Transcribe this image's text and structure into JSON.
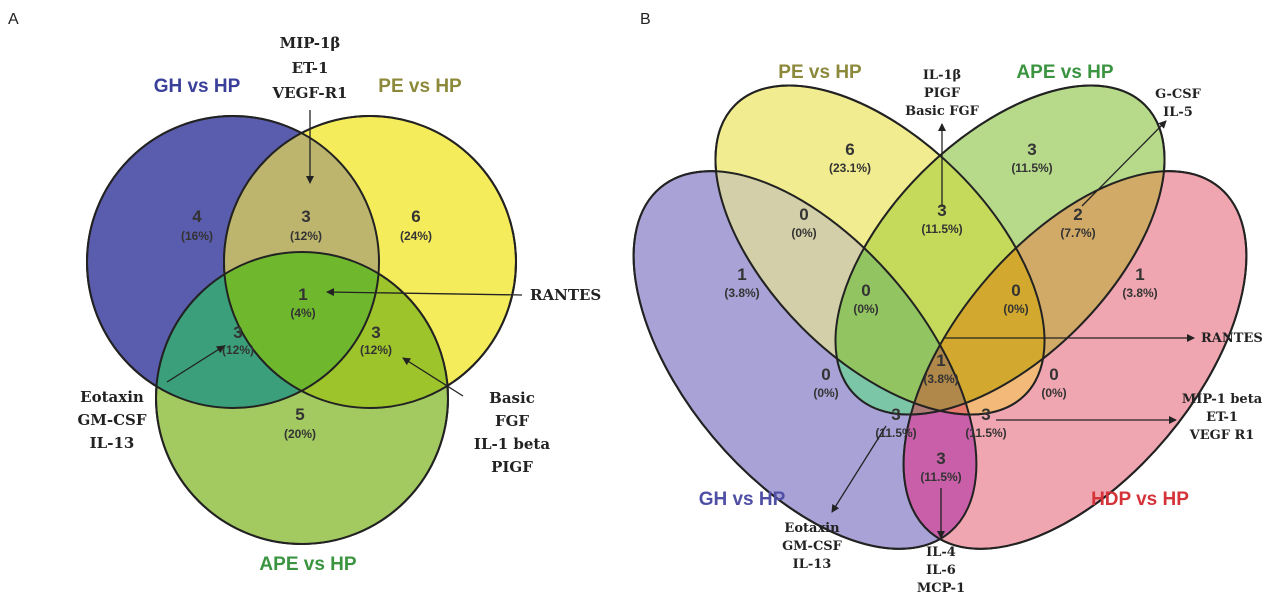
{
  "panels": [
    {
      "id": "A",
      "label": "A",
      "sets": [
        {
          "name": "GH vs HP",
          "color": "#5555a8",
          "fill": "#5a5cad"
        },
        {
          "name": "PE vs HP",
          "color": "#8c8a3a",
          "fill": "#f5ec5c"
        },
        {
          "name": "APE vs HP",
          "color": "#3b9440",
          "fill": "#a3c961"
        }
      ],
      "regions": [
        {
          "key": "gh_only",
          "count": "4",
          "pct": "(16%)"
        },
        {
          "key": "pe_only",
          "count": "6",
          "pct": "(24%)"
        },
        {
          "key": "ape_only",
          "count": "5",
          "pct": "(20%)"
        },
        {
          "key": "gh_pe",
          "count": "3",
          "pct": "(12%)"
        },
        {
          "key": "gh_ape",
          "count": "3",
          "pct": "(12%)"
        },
        {
          "key": "pe_ape",
          "count": "3",
          "pct": "(12%)"
        },
        {
          "key": "all",
          "count": "1",
          "pct": "(4%)"
        }
      ],
      "annotations": [
        {
          "key": "gh_pe",
          "lines": [
            "MIP-1β",
            "ET-1",
            "VEGF-R1"
          ]
        },
        {
          "key": "all",
          "lines": [
            "RANTES"
          ]
        },
        {
          "key": "gh_ape",
          "lines": [
            "Eotaxin",
            "GM-CSF",
            "IL-13"
          ]
        },
        {
          "key": "pe_ape",
          "lines": [
            "Basic",
            "FGF",
            "IL-1 beta",
            "PIGF"
          ]
        }
      ]
    },
    {
      "id": "B",
      "label": "B",
      "sets": [
        {
          "name": "PE vs HP",
          "color": "#8c8a3a",
          "fill": "#f1ec8f"
        },
        {
          "name": "APE vs HP",
          "color": "#3b9440",
          "fill": "#b6d98a"
        },
        {
          "name": "GH vs HP",
          "color": "#4f4fa6",
          "fill": "#a8a2d6"
        },
        {
          "name": "HDP vs HP",
          "color": "#d4333a",
          "fill": "#f0a6b0"
        }
      ],
      "regions": [
        {
          "key": "pe_only",
          "count": "6",
          "pct": "(23.1%)"
        },
        {
          "key": "ape_only",
          "count": "3",
          "pct": "(11.5%)"
        },
        {
          "key": "gh_pe",
          "count": "0",
          "pct": "(0%)"
        },
        {
          "key": "pe_ape",
          "count": "3",
          "pct": "(11.5%)"
        },
        {
          "key": "ape_hdp",
          "count": "2",
          "pct": "(7.7%)"
        },
        {
          "key": "gh_only",
          "count": "1",
          "pct": "(3.8%)"
        },
        {
          "key": "gh_pe_ape",
          "count": "0",
          "pct": "(0%)"
        },
        {
          "key": "pe_ape_hdp",
          "count": "0",
          "pct": "(0%)"
        },
        {
          "key": "hdp_only",
          "count": "1",
          "pct": "(3.8%)"
        },
        {
          "key": "all",
          "count": "1",
          "pct": "(3.8%)"
        },
        {
          "key": "gh_ape",
          "count": "0",
          "pct": "(0%)"
        },
        {
          "key": "pe_hdp",
          "count": "0",
          "pct": "(0%)"
        },
        {
          "key": "gh_ape_hdp",
          "count": "3",
          "pct": "(11.5%)"
        },
        {
          "key": "gh_pe_hdp",
          "count": "3",
          "pct": "(11.5%)"
        },
        {
          "key": "gh_hdp",
          "count": "3",
          "pct": "(11.5%)"
        }
      ],
      "annotations": [
        {
          "key": "pe_ape",
          "lines": [
            "IL-1β",
            "PIGF",
            "Basic FGF"
          ]
        },
        {
          "key": "ape_hdp",
          "lines": [
            "G-CSF",
            "IL-5"
          ]
        },
        {
          "key": "all",
          "lines": [
            "RANTES"
          ]
        },
        {
          "key": "gh_pe_hdp",
          "lines": [
            "MIP-1 beta",
            "ET-1",
            "VEGF R1"
          ]
        },
        {
          "key": "gh_ape_hdp",
          "lines": [
            "Eotaxin",
            "GM-CSF",
            "IL-13"
          ]
        },
        {
          "key": "gh_hdp",
          "lines": [
            "IL-4",
            "IL-6",
            "MCP-1"
          ]
        }
      ]
    }
  ]
}
